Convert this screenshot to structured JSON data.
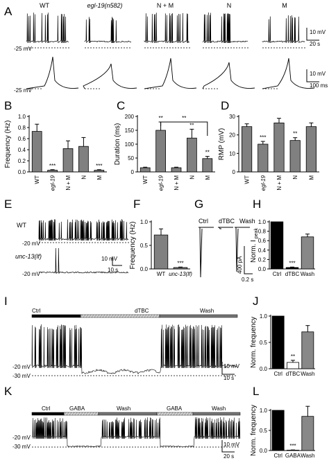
{
  "panelA": {
    "letter": "A",
    "conditions": [
      {
        "label": "WT",
        "italic": false
      },
      {
        "label": "egl-19(n582)",
        "italic": true
      },
      {
        "label": "N + M",
        "italic": false
      },
      {
        "label": "N",
        "italic": false
      },
      {
        "label": "M",
        "italic": false
      }
    ],
    "baseline_top": "-25 mV",
    "baseline_bottom": "-25 mV",
    "scale_top_v": "10 mV",
    "scale_top_t": "20 s",
    "scale_bottom_v": "10 mV",
    "scale_bottom_t": "100 ms"
  },
  "panelB": {
    "letter": "B",
    "chart_data": {
      "type": "bar",
      "categories": [
        "WT",
        "egl-19",
        "N + M",
        "N",
        "M"
      ],
      "values": [
        0.73,
        0.03,
        0.42,
        0.46,
        0.03
      ],
      "errors": [
        0.13,
        0.01,
        0.14,
        0.16,
        0.01
      ],
      "ylabel": "Frequency (Hz)",
      "ylim": [
        0,
        1.0
      ],
      "yticks": [
        "0.0",
        "0.2",
        "0.4",
        "0.6",
        "0.8",
        "1.0"
      ],
      "yticks_num": [
        0,
        0.2,
        0.4,
        0.6,
        0.8,
        1.0
      ],
      "significance": [
        "",
        "***",
        "",
        "",
        "***"
      ]
    }
  },
  "panelC": {
    "letter": "C",
    "chart_data": {
      "type": "bar",
      "categories": [
        "WT",
        "egl-19",
        "N + M",
        "N",
        "M"
      ],
      "values": [
        15,
        150,
        15,
        122,
        48
      ],
      "errors": [
        2,
        30,
        2,
        32,
        8
      ],
      "ylabel": "Duration (ms)",
      "ylim": [
        0,
        200
      ],
      "yticks": [
        "0",
        "50",
        "100",
        "150",
        "200"
      ],
      "yticks_num": [
        0,
        50,
        100,
        150,
        200
      ],
      "significance": [
        "",
        "**",
        "",
        "**",
        "**"
      ],
      "bracket_label": "**"
    }
  },
  "panelD": {
    "letter": "D",
    "chart_data": {
      "type": "bar",
      "categories": [
        "WT",
        "egl-19",
        "N + M",
        "N",
        "M"
      ],
      "values": [
        24.5,
        15,
        26.5,
        17,
        24.5
      ],
      "errors": [
        1.5,
        1.5,
        2.5,
        1.5,
        2
      ],
      "ylabel": "RMP (mV)",
      "ylim": [
        0,
        30
      ],
      "yticks": [
        "0",
        "10",
        "20",
        "30"
      ],
      "yticks_num": [
        0,
        10,
        20,
        30
      ],
      "significance": [
        "",
        "***",
        "",
        "**",
        ""
      ]
    }
  },
  "panelE": {
    "letter": "E",
    "trace1_label": "WT",
    "trace2_label": "unc-13(lf)",
    "baseline1": "-20 mV",
    "baseline2": "-20 mV",
    "scale_v": "10 mV",
    "scale_t": "10 s"
  },
  "panelF": {
    "letter": "F",
    "chart_data": {
      "type": "bar",
      "categories": [
        "WT",
        "unc-13(lf)"
      ],
      "values": [
        0.72,
        0.03
      ],
      "errors": [
        0.13,
        0.01
      ],
      "ylabel": "Frequency (Hz)",
      "ylim": [
        0,
        1.0
      ],
      "yticks": [
        "0.0",
        "0.5",
        "1.0"
      ],
      "yticks_num": [
        0,
        0.5,
        1.0
      ],
      "significance": [
        "",
        "***"
      ]
    }
  },
  "panelG": {
    "letter": "G",
    "labels": [
      "Ctrl",
      "dTBC",
      "Wash"
    ],
    "scale_i": "400 pA",
    "scale_t": "0.2 s"
  },
  "panelH": {
    "letter": "H",
    "chart_data": {
      "type": "bar",
      "categories": [
        "Ctrl",
        "dTBC",
        "Wash"
      ],
      "values": [
        1.0,
        0.03,
        0.68
      ],
      "errors": [
        0,
        0.01,
        0.06
      ],
      "ylabel": "Norm. I",
      "ylabel_sub": "peak",
      "ylim": [
        0,
        1.0
      ],
      "yticks": [
        "0.0",
        "0.2",
        "0.4",
        "0.6",
        "0.8",
        "1.0"
      ],
      "yticks_num": [
        0,
        0.2,
        0.4,
        0.6,
        0.8,
        1.0
      ],
      "significance": [
        "",
        "***",
        ""
      ],
      "colors": [
        "#000000",
        "#000000",
        "#888888"
      ]
    }
  },
  "panelI": {
    "letter": "I",
    "bars": [
      "Ctrl",
      "dTBC",
      "Wash"
    ],
    "baseline1": "-20 mV",
    "baseline2": "-30 mV",
    "scale_v": "10 mV",
    "scale_t": "10 s"
  },
  "panelJ": {
    "letter": "J",
    "chart_data": {
      "type": "bar",
      "categories": [
        "Ctrl",
        "dTBC",
        "Wash"
      ],
      "values": [
        1.0,
        0.12,
        0.7
      ],
      "errors": [
        0,
        0.04,
        0.12
      ],
      "ylabel": "Norm. frequency",
      "ylim": [
        0,
        1.0
      ],
      "yticks": [
        "0.0",
        "0.5",
        "1.0"
      ],
      "yticks_num": [
        0,
        0.5,
        1.0
      ],
      "significance": [
        "",
        "**",
        ""
      ],
      "colors": [
        "#000000",
        "#ffffff",
        "#888888"
      ]
    }
  },
  "panelK": {
    "letter": "K",
    "bars": [
      "Ctrl",
      "GABA",
      "Wash",
      "GABA",
      "Wash"
    ],
    "baseline1": "-20 mV",
    "baseline2": "-30 mV",
    "scale_v": "10 mV",
    "scale_t": "20 s"
  },
  "panelL": {
    "letter": "L",
    "chart_data": {
      "type": "bar",
      "categories": [
        "Ctrl",
        "GABA",
        "Wash"
      ],
      "values": [
        1.0,
        0.01,
        0.85
      ],
      "errors": [
        0,
        0.005,
        0.25
      ],
      "ylabel": "Norm. frequency",
      "ylim": [
        0,
        1.0
      ],
      "yticks": [
        "0.0",
        "0.5",
        "1.0"
      ],
      "yticks_num": [
        0,
        0.5,
        1.0
      ],
      "significance": [
        "",
        "***",
        ""
      ],
      "colors": [
        "#000000",
        "#ffffff",
        "#888888"
      ]
    }
  },
  "colors": {
    "bar_dark": "#808080",
    "bar_black": "#000000",
    "trace": "#000000"
  }
}
